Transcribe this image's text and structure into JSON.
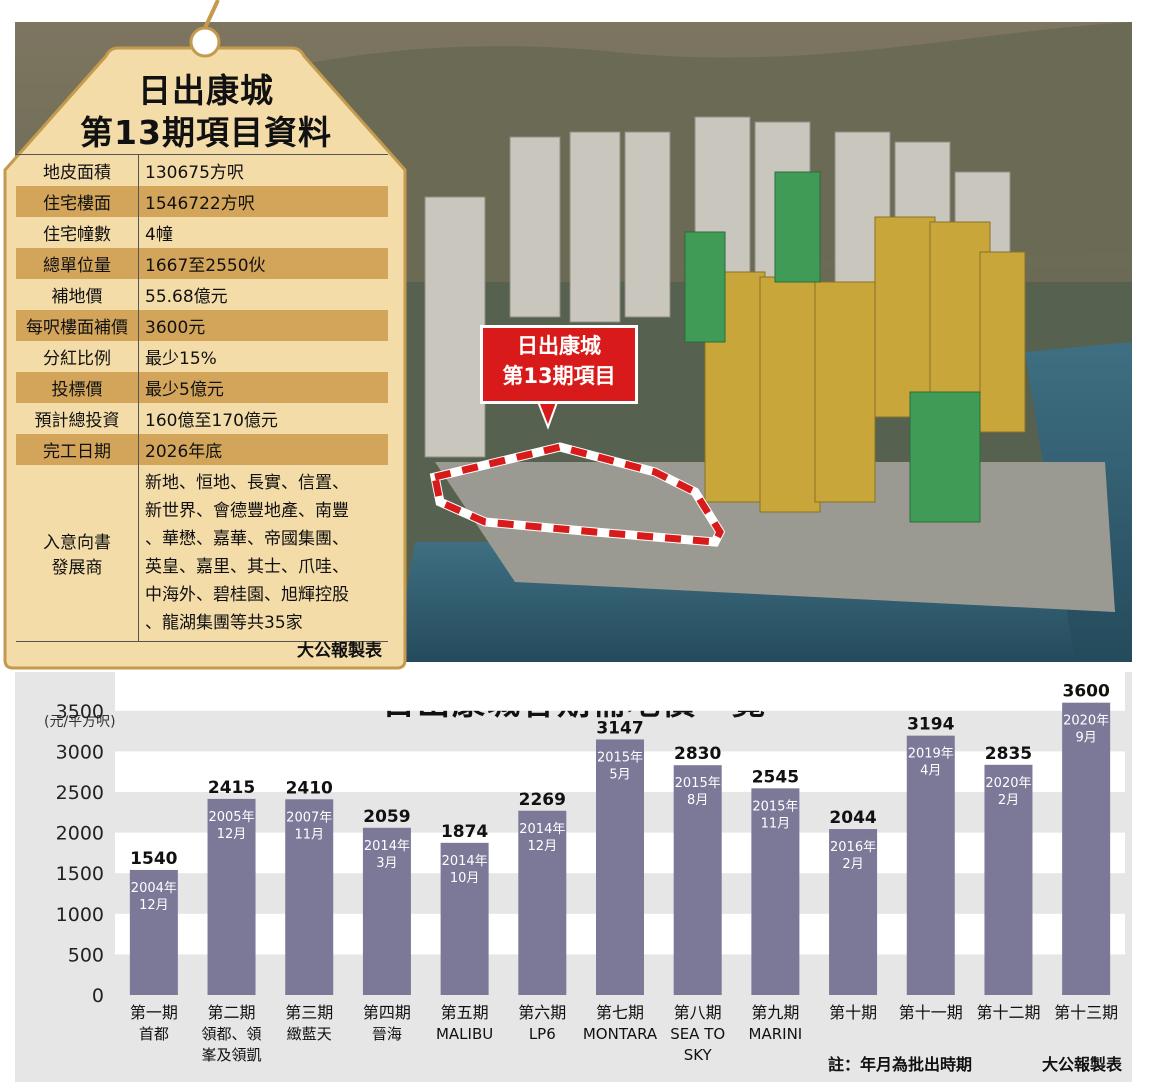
{
  "card": {
    "title_line1": "日出康城",
    "title_line2": "第13期項目資料",
    "rows": [
      {
        "key": "地皮面積",
        "value": "130675方呎"
      },
      {
        "key": "住宅樓面",
        "value": "1546722方呎"
      },
      {
        "key": "住宅幢數",
        "value": "4幢"
      },
      {
        "key": "總單位量",
        "value": "1667至2550伙"
      },
      {
        "key": "補地價",
        "value": "55.68億元"
      },
      {
        "key": "每呎樓面補價",
        "value": "3600元"
      },
      {
        "key": "分紅比例",
        "value": "最少15%"
      },
      {
        "key": "投標價",
        "value": "最少5億元"
      },
      {
        "key": "預計總投資",
        "value": "160億至170億元"
      },
      {
        "key": "完工日期",
        "value": "2026年底"
      }
    ],
    "developers_key_line1": "入意向書",
    "developers_key_line2": "發展商",
    "developers_lines": [
      "新地、恒地、長實、信置、",
      "新世界、會德豐地產、南豐",
      "、華懋、嘉華、帝國集團、",
      "英皇、嘉里、其士、爪哇、",
      "中海外、碧桂園、旭輝控股",
      "、龍湖集團等共35家"
    ],
    "credit": "大公報製表"
  },
  "callout": {
    "line1": "日出康城",
    "line2": "第13期項目"
  },
  "chart_data": {
    "type": "bar",
    "title": "日出康城各期補地價一覽",
    "ylabel": "(元/平方呎)",
    "ylim": [
      0,
      3600
    ],
    "yticks": [
      0,
      500,
      1000,
      1500,
      2000,
      2500,
      3000,
      3500
    ],
    "categories": [
      [
        "第一期",
        "首都"
      ],
      [
        "第二期",
        "領都、領",
        "峯及領凱"
      ],
      [
        "第三期",
        "緻藍天"
      ],
      [
        "第四期",
        "晉海"
      ],
      [
        "第五期",
        "MALIBU"
      ],
      [
        "第六期",
        "LP6"
      ],
      [
        "第七期",
        "MONTARA"
      ],
      [
        "第八期",
        "SEA TO",
        "SKY"
      ],
      [
        "第九期",
        "MARINI"
      ],
      [
        "第十期"
      ],
      [
        "第十一期"
      ],
      [
        "第十二期"
      ],
      [
        "第十三期"
      ]
    ],
    "values": [
      1540,
      2415,
      2410,
      2059,
      1874,
      2269,
      3147,
      2830,
      2545,
      2044,
      3194,
      2835,
      3600
    ],
    "dates": [
      [
        "2004年",
        "12月"
      ],
      [
        "2005年",
        "12月"
      ],
      [
        "2007年",
        "11月"
      ],
      [
        "2014年",
        "3月"
      ],
      [
        "2014年",
        "10月"
      ],
      [
        "2014年",
        "12月"
      ],
      [
        "2015年",
        "5月"
      ],
      [
        "2015年",
        "8月"
      ],
      [
        "2015年",
        "11月"
      ],
      [
        "2016年",
        "2月"
      ],
      [
        "2019年",
        "4月"
      ],
      [
        "2020年",
        "2月"
      ],
      [
        "2020年",
        "9月"
      ]
    ],
    "note": "註：年月為批出時期",
    "credit": "大公報製表",
    "bar_color": "#7b7898",
    "grid_band_color": "#ffffff"
  }
}
